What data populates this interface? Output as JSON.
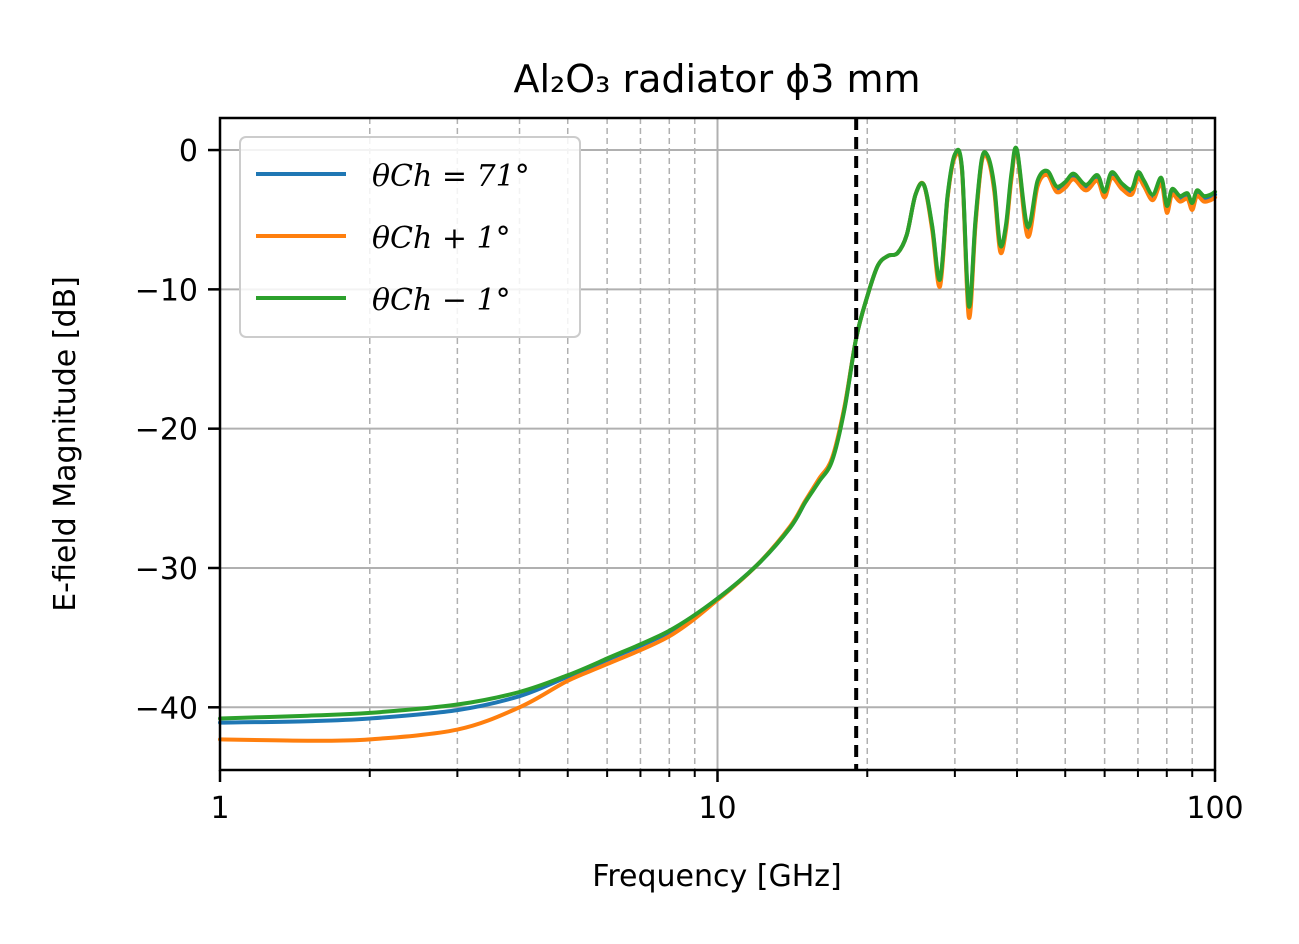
{
  "chart_data": {
    "type": "line",
    "title": "Al₂O₃ radiator ϕ3 mm",
    "xlabel": "Frequency [GHz]",
    "ylabel": "E-field Magnitude [dB]",
    "xscale": "log",
    "xlim": [
      1,
      100
    ],
    "ylim": [
      -44.5,
      2.3
    ],
    "xticks": [
      1,
      10,
      100
    ],
    "xtick_labels": [
      "1",
      "10",
      "100"
    ],
    "yticks": [
      0,
      -10,
      -20,
      -30,
      -40
    ],
    "ytick_labels": [
      "0",
      "−10",
      "−20",
      "−30",
      "−40"
    ],
    "grid": true,
    "legend_position": "upper left",
    "vline": {
      "x": 19,
      "style": "dashed",
      "color": "#000000"
    },
    "series": [
      {
        "name": "θCh = 71°",
        "color": "#1f77b4",
        "x": [
          1,
          1.5,
          2,
          3,
          4,
          5,
          6,
          8,
          10,
          12,
          14,
          15,
          16,
          17,
          18,
          19,
          20,
          21,
          22,
          23,
          24,
          25,
          26,
          27,
          28,
          29,
          30,
          31,
          32,
          33,
          34,
          35,
          36,
          37,
          38,
          39,
          40,
          42,
          44,
          46,
          48,
          50,
          52,
          55,
          58,
          60,
          62,
          65,
          68,
          70,
          72,
          75,
          78,
          80,
          82,
          85,
          88,
          90,
          92,
          95,
          98,
          100
        ],
        "y": [
          -41.1,
          -41.0,
          -40.8,
          -40.2,
          -39.2,
          -37.8,
          -36.6,
          -34.6,
          -32.2,
          -29.8,
          -27.1,
          -25.3,
          -23.7,
          -22.2,
          -18.5,
          -13.5,
          -10.5,
          -8.3,
          -7.6,
          -7.4,
          -6.1,
          -3.2,
          -2.5,
          -5.5,
          -9.5,
          -3.4,
          -0.4,
          -1.4,
          -11.5,
          -5.2,
          -0.7,
          -0.6,
          -2.8,
          -7.0,
          -5.6,
          -1.8,
          -0.1,
          -5.8,
          -2.4,
          -1.6,
          -2.8,
          -2.5,
          -1.9,
          -2.7,
          -2.0,
          -3.2,
          -1.8,
          -2.6,
          -3.0,
          -1.8,
          -2.4,
          -3.4,
          -2.2,
          -4.2,
          -3.0,
          -3.5,
          -3.3,
          -4.0,
          -3.1,
          -3.5,
          -3.4,
          -3.2
        ]
      },
      {
        "name": "θCh + 1°",
        "color": "#ff7f0e",
        "x": [
          1,
          1.5,
          2,
          3,
          4,
          5,
          6,
          8,
          10,
          12,
          14,
          15,
          16,
          17,
          18,
          19,
          20,
          21,
          22,
          23,
          24,
          25,
          26,
          27,
          28,
          29,
          30,
          31,
          32,
          33,
          34,
          35,
          36,
          37,
          38,
          39,
          40,
          42,
          44,
          46,
          48,
          50,
          52,
          55,
          58,
          60,
          62,
          65,
          68,
          70,
          72,
          75,
          78,
          80,
          82,
          85,
          88,
          90,
          92,
          95,
          98,
          100
        ],
        "y": [
          -42.3,
          -42.4,
          -42.3,
          -41.6,
          -40.0,
          -38.1,
          -36.9,
          -34.9,
          -32.3,
          -29.8,
          -27.0,
          -25.2,
          -23.6,
          -22.1,
          -18.4,
          -13.5,
          -10.5,
          -8.3,
          -7.6,
          -7.4,
          -6.1,
          -3.2,
          -2.5,
          -5.7,
          -9.8,
          -3.5,
          -0.5,
          -1.5,
          -12.0,
          -5.4,
          -0.8,
          -0.7,
          -3.0,
          -7.3,
          -5.8,
          -2.0,
          -0.1,
          -6.2,
          -2.6,
          -1.8,
          -3.0,
          -2.7,
          -2.1,
          -2.9,
          -2.2,
          -3.4,
          -2.0,
          -2.8,
          -3.2,
          -2.0,
          -2.6,
          -3.6,
          -2.4,
          -4.5,
          -3.2,
          -3.7,
          -3.5,
          -4.3,
          -3.3,
          -3.7,
          -3.6,
          -3.4
        ]
      },
      {
        "name": "θCh − 1°",
        "color": "#2ca02c",
        "x": [
          1,
          1.5,
          2,
          3,
          4,
          5,
          6,
          8,
          10,
          12,
          14,
          15,
          16,
          17,
          18,
          19,
          20,
          21,
          22,
          23,
          24,
          25,
          26,
          27,
          28,
          29,
          30,
          31,
          32,
          33,
          34,
          35,
          36,
          37,
          38,
          39,
          40,
          42,
          44,
          46,
          48,
          50,
          52,
          55,
          58,
          60,
          62,
          65,
          68,
          70,
          72,
          75,
          78,
          80,
          82,
          85,
          88,
          90,
          92,
          95,
          98,
          100
        ],
        "y": [
          -40.8,
          -40.6,
          -40.4,
          -39.8,
          -38.9,
          -37.7,
          -36.5,
          -34.5,
          -32.2,
          -29.8,
          -27.1,
          -25.3,
          -23.8,
          -22.3,
          -18.6,
          -13.5,
          -10.5,
          -8.3,
          -7.6,
          -7.4,
          -6.1,
          -3.2,
          -2.5,
          -5.4,
          -9.3,
          -3.3,
          -0.3,
          -1.3,
          -11.2,
          -5.0,
          -0.6,
          -0.5,
          -2.6,
          -6.8,
          -5.4,
          -1.6,
          0.0,
          -5.5,
          -2.2,
          -1.5,
          -2.6,
          -2.3,
          -1.7,
          -2.5,
          -1.8,
          -3.0,
          -1.6,
          -2.4,
          -2.8,
          -1.6,
          -2.2,
          -3.2,
          -2.0,
          -4.0,
          -2.8,
          -3.3,
          -3.1,
          -3.8,
          -2.9,
          -3.3,
          -3.2,
          -3.0
        ]
      }
    ]
  }
}
